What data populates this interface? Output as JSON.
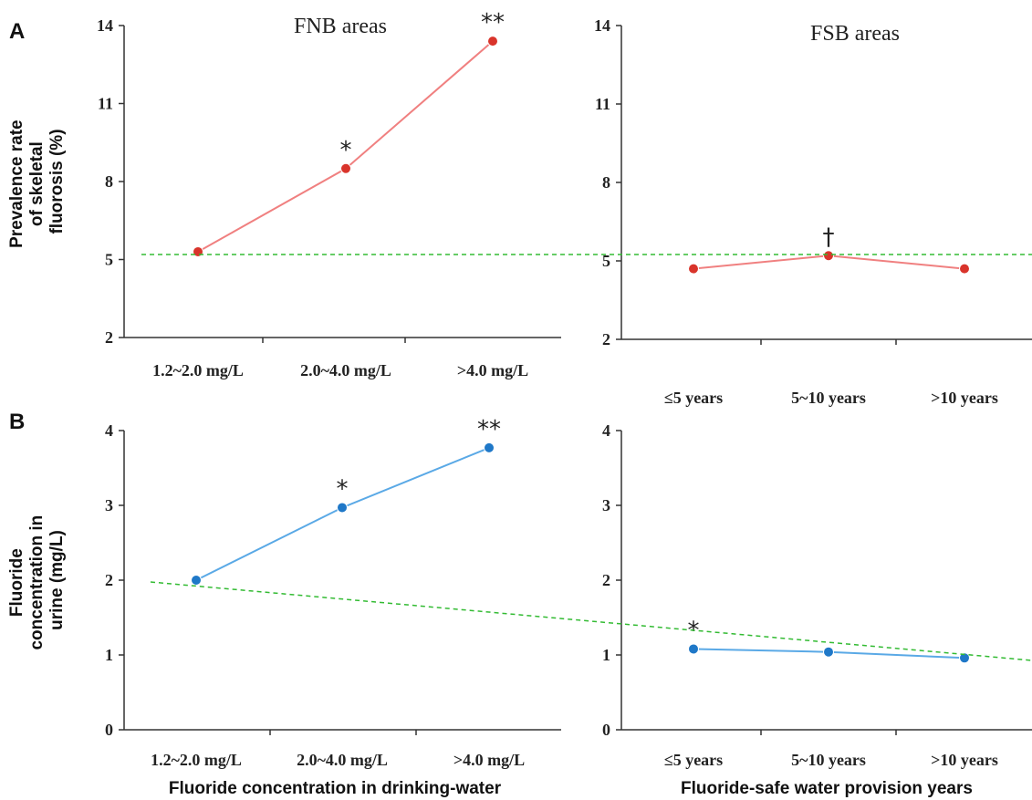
{
  "panel_labels": {
    "a": "A",
    "b": "B"
  },
  "ylabels": {
    "a": [
      "Prevalence rate",
      "of skeletal",
      "fluorosis  (%)"
    ],
    "b": [
      "Fluoride",
      "concentration in",
      "urine  (mg/L)"
    ]
  },
  "xlabels": {
    "left": "Fluoride concentration in drinking-water",
    "right": "Fluoride-safe water provision years"
  },
  "colors": {
    "red_line": "#f08080",
    "red_marker": "#d9342b",
    "blue_line": "#5aa9e6",
    "blue_marker": "#1f78c8",
    "reference": "#33bb33"
  },
  "chart_data": [
    {
      "type": "line",
      "title": "FNB areas",
      "categories": [
        "1.2~2.0 mg/L",
        "2.0~4.0 mg/L",
        ">4.0 mg/L"
      ],
      "values": [
        5.3,
        8.5,
        13.4
      ],
      "annotations": [
        "",
        "*",
        "**"
      ],
      "yticks": [
        "2",
        "5",
        "8",
        "11",
        "14"
      ],
      "ylim": [
        2,
        14
      ]
    },
    {
      "type": "line",
      "title": "FSB areas",
      "categories": [
        "≤5 years",
        "5~10 years",
        ">10 years"
      ],
      "values": [
        4.7,
        5.2,
        4.7
      ],
      "annotations": [
        "",
        "†",
        ""
      ],
      "yticks": [
        "2",
        "5",
        "8",
        "11",
        "14"
      ],
      "ylim": [
        2,
        14
      ]
    },
    {
      "type": "line",
      "categories": [
        "1.2~2.0 mg/L",
        "2.0~4.0 mg/L",
        ">4.0 mg/L"
      ],
      "values": [
        2.0,
        2.97,
        3.77
      ],
      "annotations": [
        "",
        "*",
        "**"
      ],
      "yticks": [
        "0",
        "1",
        "2",
        "3",
        "4"
      ],
      "ylim": [
        0,
        4
      ]
    },
    {
      "type": "line",
      "categories": [
        "≤5 years",
        "5~10 years",
        ">10 years"
      ],
      "values": [
        1.08,
        1.04,
        0.96
      ],
      "annotations": [
        "*",
        "",
        ""
      ],
      "yticks": [
        "0",
        "1",
        "2",
        "3",
        "4"
      ],
      "ylim": [
        0,
        4
      ]
    }
  ]
}
